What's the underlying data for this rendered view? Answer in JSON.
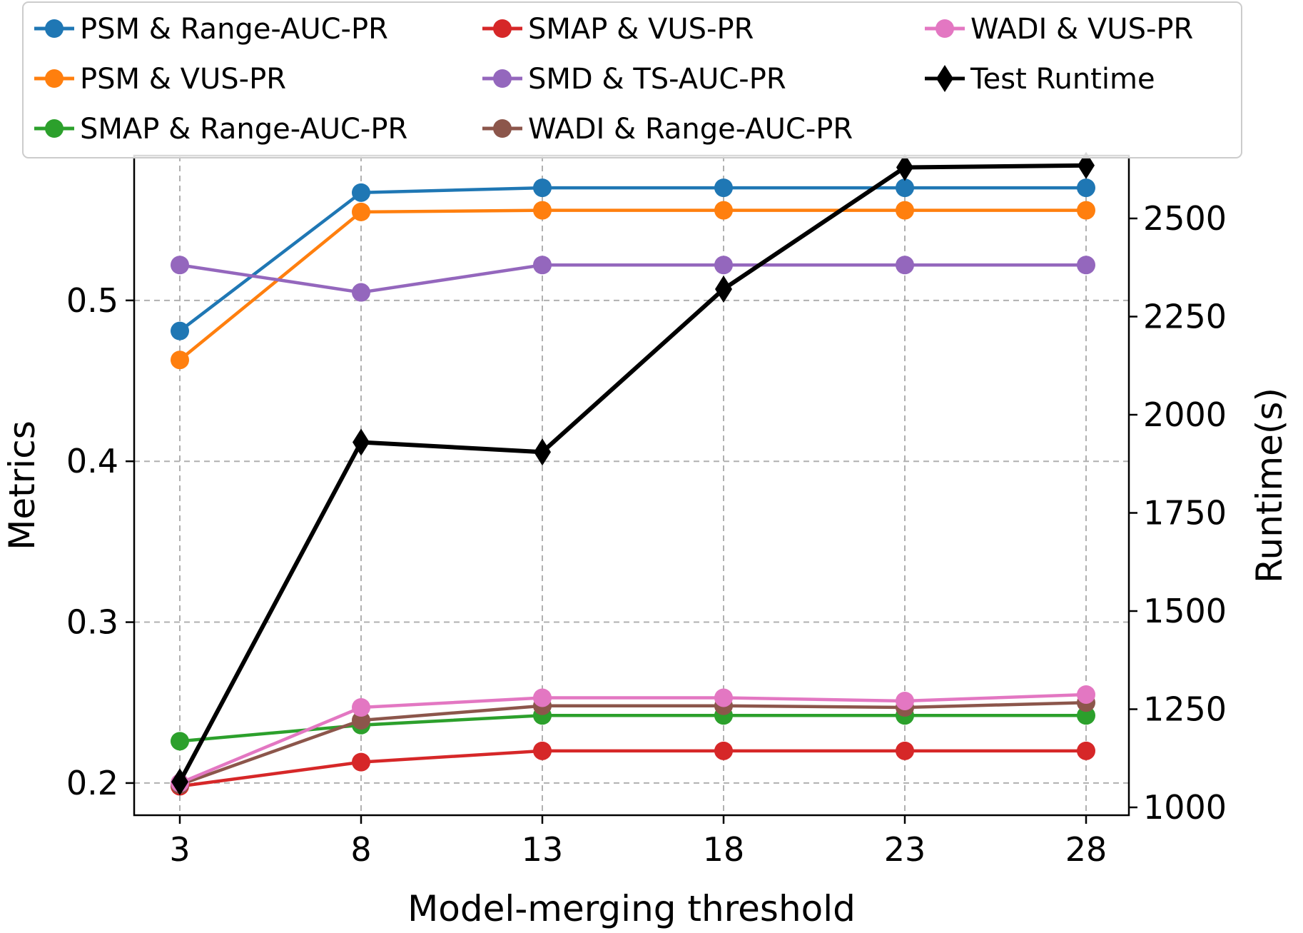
{
  "chart_data": {
    "type": "line",
    "xlabel": "Model-merging threshold",
    "ylabel": "Metrics",
    "y2label": "Runtime(s)",
    "x": [
      3,
      8,
      13,
      18,
      23,
      28
    ],
    "xticks": [
      "3",
      "8",
      "13",
      "18",
      "23",
      "28"
    ],
    "ylim": [
      0.18,
      0.59
    ],
    "yticks": [
      0.2,
      0.3,
      0.4,
      0.5
    ],
    "ytick_labels": [
      "0.2",
      "0.3",
      "0.4",
      "0.5"
    ],
    "y2lim": [
      980,
      2660
    ],
    "y2ticks": [
      1000,
      1250,
      1500,
      1750,
      2000,
      2250,
      2500
    ],
    "y2tick_labels": [
      "1000",
      "1250",
      "1500",
      "1750",
      "2000",
      "2250",
      "2500"
    ],
    "grid": true,
    "legend_position": "top",
    "series": [
      {
        "name": "PSM & Range-AUC-PR",
        "color": "#1f77b4",
        "marker": "circle",
        "axis": "left",
        "values": [
          0.481,
          0.567,
          0.57,
          0.57,
          0.57,
          0.57
        ]
      },
      {
        "name": "PSM & VUS-PR",
        "color": "#ff7f0e",
        "marker": "circle",
        "axis": "left",
        "values": [
          0.463,
          0.555,
          0.556,
          0.556,
          0.556,
          0.556
        ]
      },
      {
        "name": "SMAP & Range-AUC-PR",
        "color": "#2ca02c",
        "marker": "circle",
        "axis": "left",
        "values": [
          0.226,
          0.236,
          0.242,
          0.242,
          0.242,
          0.242
        ]
      },
      {
        "name": "SMAP & VUS-PR",
        "color": "#d62728",
        "marker": "circle",
        "axis": "left",
        "values": [
          0.198,
          0.213,
          0.22,
          0.22,
          0.22,
          0.22
        ]
      },
      {
        "name": "SMD & TS-AUC-PR",
        "color": "#9467bd",
        "marker": "circle",
        "axis": "left",
        "values": [
          0.522,
          0.505,
          0.522,
          0.522,
          0.522,
          0.522
        ]
      },
      {
        "name": "WADI & Range-AUC-PR",
        "color": "#8c564b",
        "marker": "circle",
        "axis": "left",
        "values": [
          0.199,
          0.239,
          0.248,
          0.248,
          0.247,
          0.25
        ]
      },
      {
        "name": "WADI & VUS-PR",
        "color": "#e377c2",
        "marker": "circle",
        "axis": "left",
        "values": [
          0.2,
          0.247,
          0.253,
          0.253,
          0.251,
          0.255
        ]
      },
      {
        "name": "Test Runtime",
        "color": "#000000",
        "marker": "diamond",
        "axis": "right",
        "values": [
          1065,
          1930,
          1905,
          2320,
          2630,
          2635
        ]
      }
    ]
  }
}
